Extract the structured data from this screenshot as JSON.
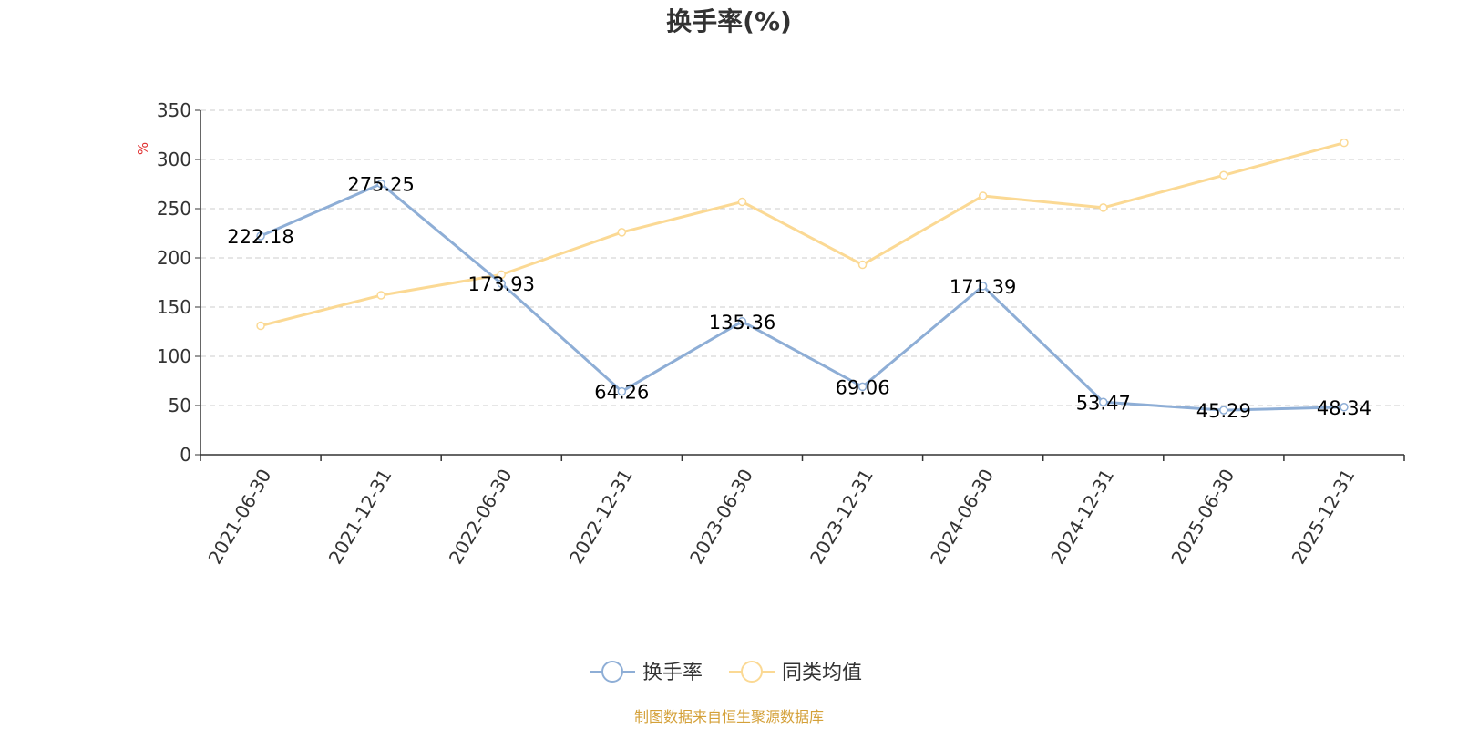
{
  "chart_data": {
    "type": "line",
    "title": "换手率(%)",
    "ylabel": "%",
    "xlabel": "",
    "categories": [
      "2021-06-30",
      "2021-12-31",
      "2022-06-30",
      "2022-12-31",
      "2023-06-30",
      "2023-12-31",
      "2024-06-30",
      "2024-12-31",
      "2025-06-30",
      "2025-12-31"
    ],
    "ylim": [
      0,
      350
    ],
    "yticks": [
      "0",
      "50",
      "100",
      "150",
      "200",
      "250",
      "300",
      "350"
    ],
    "grid": true,
    "legend_position": "bottom-center",
    "series": [
      {
        "name": "换手率",
        "color": "#8eaed6",
        "show_labels": true,
        "values": [
          222.18,
          275.25,
          173.93,
          64.26,
          135.36,
          69.06,
          171.39,
          53.47,
          45.29,
          48.34
        ],
        "labels": [
          "222.18",
          "275.25",
          "173.93",
          "64.26",
          "135.36",
          "69.06",
          "171.39",
          "53.47",
          "45.29",
          "48.34"
        ]
      },
      {
        "name": "同类均值",
        "color": "#fbd994",
        "show_labels": false,
        "values": [
          131,
          162,
          183,
          226,
          257,
          193,
          263,
          251,
          284,
          317
        ]
      }
    ]
  },
  "colors": {
    "axis": "#333333",
    "grid": "#cccccc",
    "unit": "#e03030",
    "source": "#d4a038"
  },
  "source_text": "制图数据来自恒生聚源数据库"
}
